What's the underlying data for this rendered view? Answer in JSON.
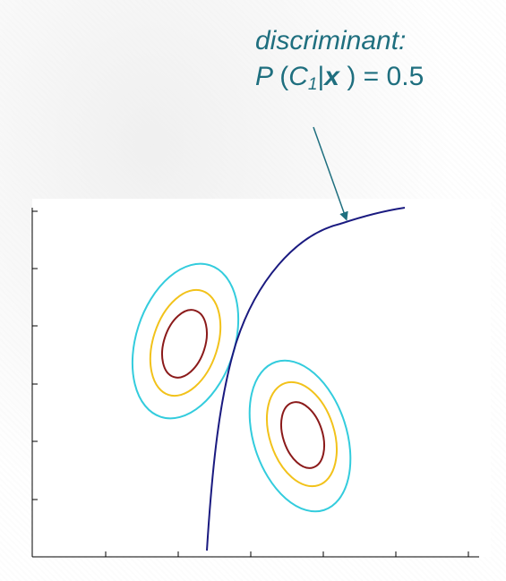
{
  "annotation": {
    "line1": "discriminant:",
    "p": "P",
    "open": "(",
    "c": "C",
    "sub": "1",
    "bar": "|",
    "x": "x",
    "close": ")",
    "eq": "=",
    "value": "0.5"
  },
  "colors": {
    "annotation": "#1f6f7f",
    "discriminant_curve": "#1a1a80",
    "contour_outer": "#33ccdd",
    "contour_middle": "#f2c21a",
    "contour_inner": "#8b1a1a",
    "axes": "#000000"
  },
  "content": {
    "class_1_contours": [
      "outer",
      "middle",
      "inner"
    ],
    "class_2_contours": [
      "outer",
      "middle",
      "inner"
    ],
    "axis_ticks": "unlabeled"
  }
}
